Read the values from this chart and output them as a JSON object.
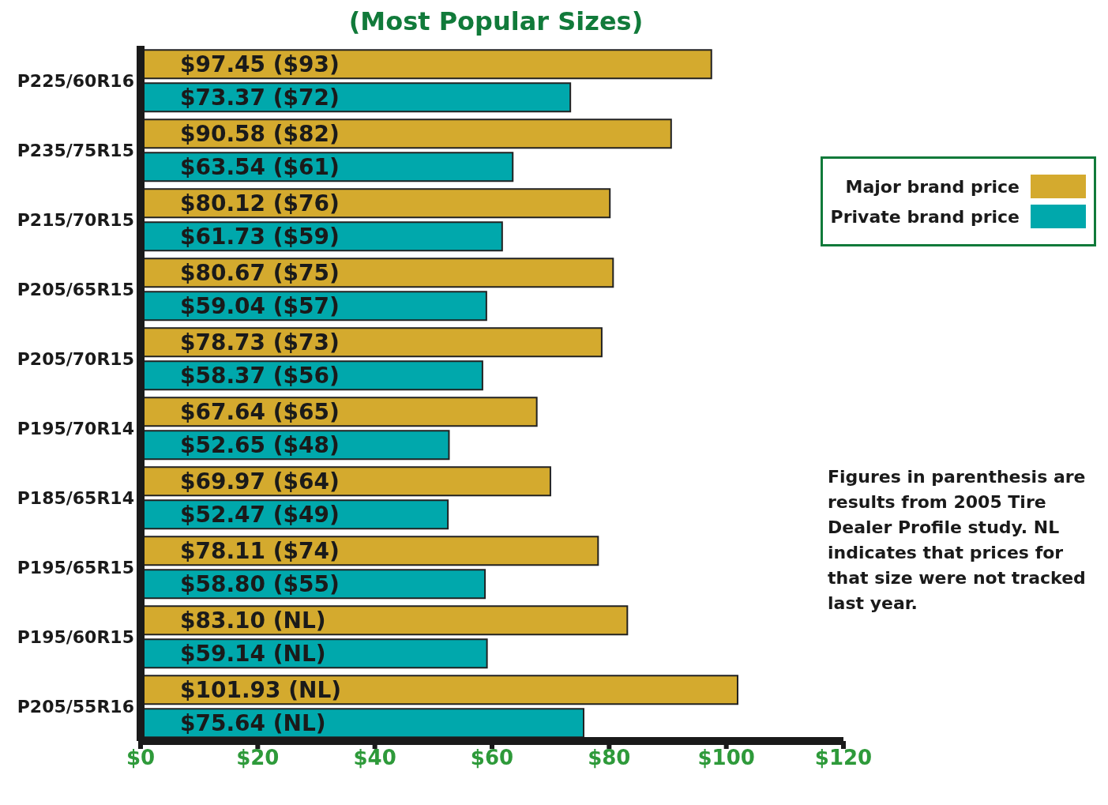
{
  "chart_data": {
    "type": "bar",
    "orientation": "horizontal",
    "title": "(Most Popular Sizes)",
    "categories": [
      "P225/60R16",
      "P235/75R15",
      "P215/70R15",
      "P205/65R15",
      "P205/70R15",
      "P195/70R14",
      "P185/65R14",
      "P195/65R15",
      "P195/60R15",
      "P205/55R16"
    ],
    "series": [
      {
        "name": "Major brand price",
        "color": "#d4aa2e",
        "values": [
          97.45,
          90.58,
          80.12,
          80.67,
          78.73,
          67.64,
          69.97,
          78.11,
          83.1,
          101.93
        ],
        "value_labels": [
          "$97.45 ($93)",
          "$90.58 ($82)",
          "$80.12 ($76)",
          "$80.67 ($75)",
          "$78.73 ($73)",
          "$67.64 ($65)",
          "$69.97 ($64)",
          "$78.11 ($74)",
          "$83.10 (NL)",
          "$101.93 (NL)"
        ]
      },
      {
        "name": "Private brand price",
        "color": "#00a8ac",
        "values": [
          73.37,
          63.54,
          61.73,
          59.04,
          58.37,
          52.65,
          52.47,
          58.8,
          59.14,
          75.64
        ],
        "value_labels": [
          "$73.37 ($72)",
          "$63.54 ($61)",
          "$61.73 ($59)",
          "$59.04 ($57)",
          "$58.37 ($56)",
          "$52.65 ($48)",
          "$52.47 ($49)",
          "$58.80 ($55)",
          "$59.14 (NL)",
          "$75.64 (NL)"
        ]
      }
    ],
    "xlim": [
      0,
      120
    ],
    "xticks": [
      {
        "value": 0,
        "label": "$0"
      },
      {
        "value": 20,
        "label": "$20"
      },
      {
        "value": 40,
        "label": "$40"
      },
      {
        "value": 60,
        "label": "$60"
      },
      {
        "value": 80,
        "label": "$80"
      },
      {
        "value": 100,
        "label": "$100"
      },
      {
        "value": 120,
        "label": "$120"
      }
    ],
    "grid": false,
    "legend": "right",
    "annotations": [
      "Figures in parenthesis are results from 2005 Tire Dealer Profile study. NL indicates that prices for that size were not tracked last year."
    ]
  }
}
